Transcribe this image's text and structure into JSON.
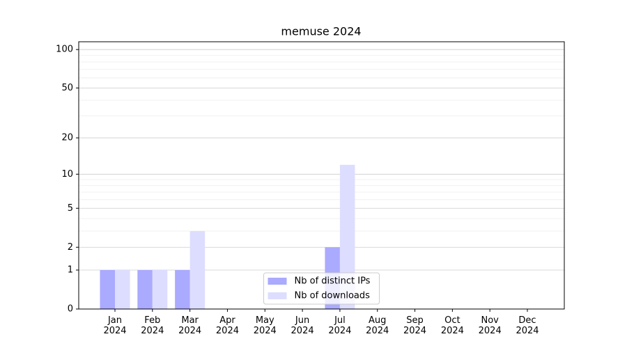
{
  "chart_data": {
    "type": "bar",
    "title": "memuse 2024",
    "categories": [
      "Jan 2024",
      "Feb 2024",
      "Mar 2024",
      "Apr 2024",
      "May 2024",
      "Jun 2024",
      "Jul 2024",
      "Aug 2024",
      "Sep 2024",
      "Oct 2024",
      "Nov 2024",
      "Dec 2024"
    ],
    "series": [
      {
        "name": "Nb of distinct IPs",
        "color": "#aaaaff",
        "values": [
          1,
          1,
          1,
          0,
          0,
          0,
          2,
          0,
          0,
          0,
          0,
          0
        ]
      },
      {
        "name": "Nb of downloads",
        "color": "#ddddff",
        "values": [
          1,
          1,
          3,
          0,
          0,
          0,
          12,
          0,
          0,
          0,
          0,
          0
        ]
      }
    ],
    "yscale": "log1p",
    "ylim": [
      0,
      115
    ],
    "yticks": [
      0,
      1,
      2,
      5,
      10,
      20,
      50,
      100
    ],
    "yminorticks": [
      3,
      4,
      6,
      7,
      8,
      9,
      30,
      40,
      60,
      70,
      80,
      90
    ],
    "grid": true,
    "legend": "lower center"
  }
}
